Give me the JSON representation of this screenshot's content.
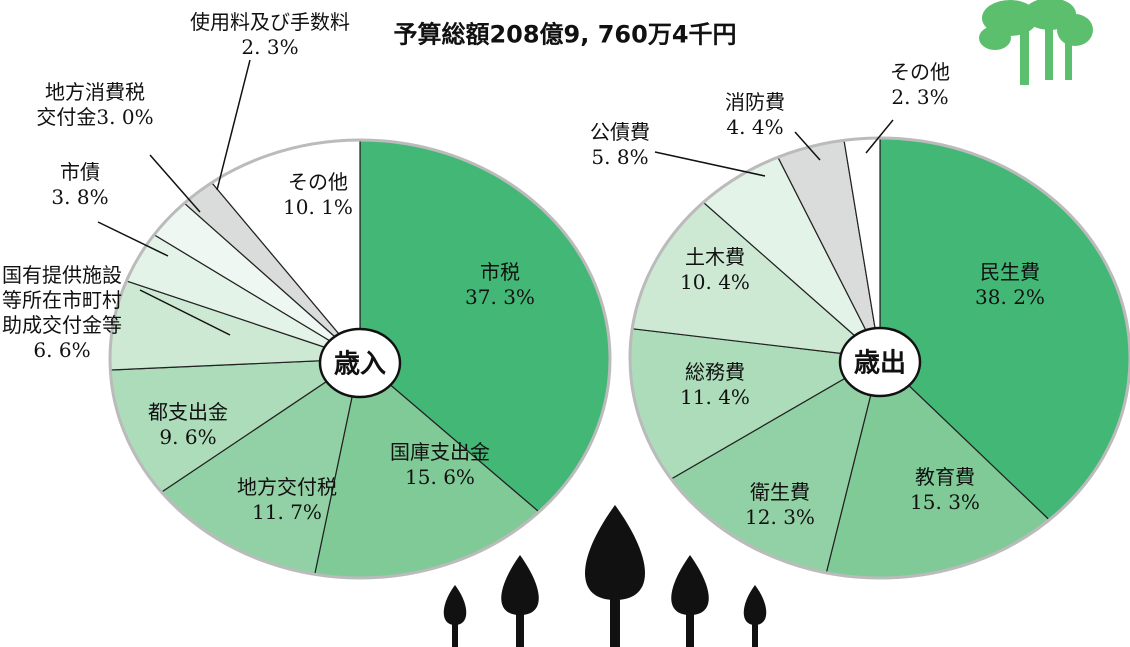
{
  "title": "予算総額208億9, 760万4千円",
  "chart_data": [
    {
      "type": "pie",
      "title": "歳入",
      "categories": [
        "市税",
        "国庫支出金",
        "地方交付税",
        "都支出金",
        "国有提供施設\n等所在市町村\n助成交付金等",
        "市債",
        "地方消費税\n交付金",
        "使用料及び手数料",
        "その他"
      ],
      "values": [
        37.3,
        15.6,
        11.7,
        9.6,
        6.6,
        3.8,
        3.0,
        2.3,
        10.1
      ],
      "value_labels": [
        "37. 3%",
        "15. 6%",
        "11. 7%",
        "9. 6%",
        "6. 6%",
        "3. 8%",
        "3. 0%",
        "2. 3%",
        "10. 1%"
      ],
      "colors": [
        "#43b776",
        "#7fca97",
        "#92d1a5",
        "#acdcb9",
        "#cde9d4",
        "#e3f3e7",
        "#eef7f1",
        "#d9dcda",
        "#ffffff"
      ]
    },
    {
      "type": "pie",
      "title": "歳出",
      "categories": [
        "民生費",
        "教育費",
        "衛生費",
        "総務費",
        "土木費",
        "公債費",
        "消防費",
        "その他"
      ],
      "values": [
        38.2,
        15.3,
        12.3,
        11.4,
        10.4,
        5.8,
        4.4,
        2.3
      ],
      "value_labels": [
        "38. 2%",
        "15. 3%",
        "12. 3%",
        "11. 4%",
        "10. 4%",
        "5. 8%",
        "4. 4%",
        "2. 3%"
      ],
      "colors": [
        "#43b776",
        "#7fca97",
        "#92d1a5",
        "#acdcb9",
        "#cde9d4",
        "#e3f3e7",
        "#d9dcda",
        "#ffffff"
      ]
    }
  ]
}
